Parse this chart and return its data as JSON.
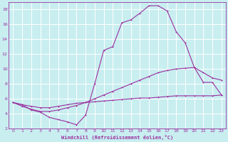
{
  "bg_color": "#c8eef0",
  "grid_color": "#ffffff",
  "line_color": "#9b30a0",
  "xlabel": "Windchill (Refroidissement éolien,°C)",
  "xlim": [
    -0.5,
    23.5
  ],
  "ylim": [
    2,
    19
  ],
  "yticks": [
    2,
    4,
    6,
    8,
    10,
    12,
    14,
    16,
    18
  ],
  "xticks": [
    0,
    1,
    2,
    3,
    4,
    5,
    6,
    7,
    8,
    9,
    10,
    11,
    12,
    13,
    14,
    15,
    16,
    17,
    18,
    19,
    20,
    21,
    22,
    23
  ],
  "curve1_x": [
    0,
    1,
    2,
    3,
    4,
    5,
    6,
    7,
    8,
    9,
    10,
    11,
    12,
    13,
    14,
    15,
    16,
    17,
    18,
    19,
    20,
    21,
    22,
    23
  ],
  "curve1_y": [
    5.5,
    5.2,
    5.0,
    4.8,
    4.8,
    5.0,
    5.2,
    5.4,
    5.5,
    5.6,
    5.7,
    5.8,
    5.9,
    6.0,
    6.1,
    6.1,
    6.2,
    6.3,
    6.4,
    6.4,
    6.4,
    6.4,
    6.4,
    6.5
  ],
  "curve2_x": [
    0,
    1,
    2,
    3,
    4,
    5,
    6,
    7,
    8,
    9,
    10,
    11,
    12,
    13,
    14,
    15,
    16,
    17,
    18,
    19,
    20,
    21,
    22,
    23
  ],
  "curve2_y": [
    5.5,
    5.0,
    4.6,
    4.3,
    4.3,
    4.5,
    4.8,
    5.1,
    5.5,
    6.0,
    6.5,
    7.0,
    7.5,
    8.0,
    8.5,
    9.0,
    9.5,
    9.8,
    10.0,
    10.1,
    10.2,
    9.5,
    8.8,
    8.5
  ],
  "curve3_x": [
    0,
    1,
    2,
    3,
    4,
    5,
    6,
    7,
    8,
    9,
    10,
    11,
    12,
    13,
    14,
    15,
    16,
    17,
    18,
    19,
    20,
    21,
    22,
    23
  ],
  "curve3_y": [
    5.5,
    5.2,
    4.5,
    4.2,
    3.5,
    3.2,
    2.9,
    2.5,
    3.8,
    8.0,
    12.5,
    13.0,
    16.2,
    16.6,
    17.5,
    18.5,
    18.5,
    17.8,
    15.0,
    13.5,
    10.2,
    8.2,
    8.2,
    6.5
  ]
}
